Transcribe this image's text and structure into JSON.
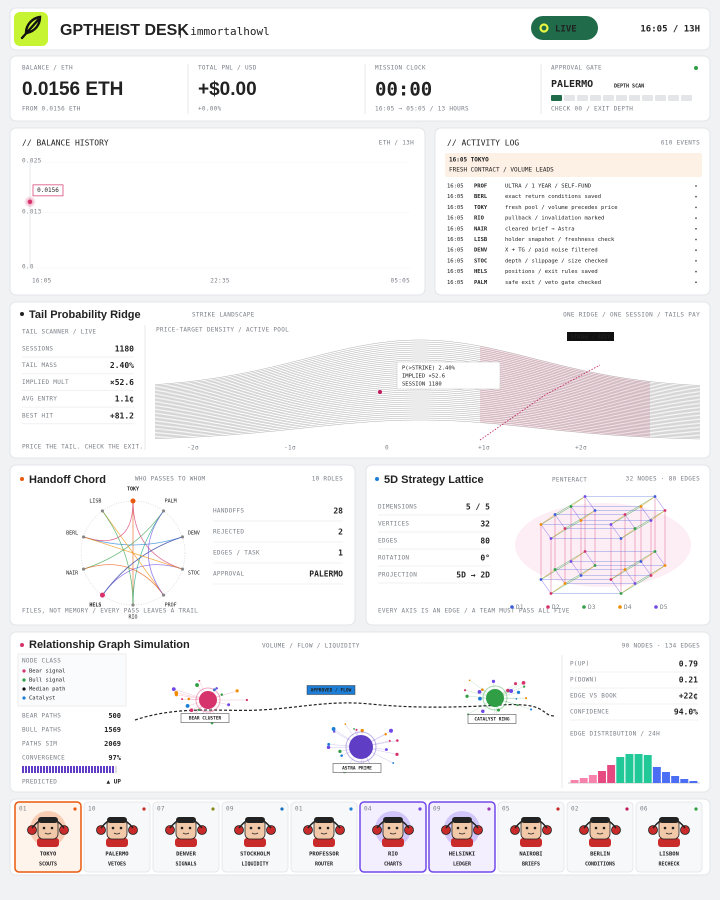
{
  "header": {
    "title": "GPTHEIST DESK",
    "user": "| immortalhowl",
    "status": "LIVE",
    "clock": "16:05 / 13H"
  },
  "stats": [
    {
      "label": "BALANCE / ETH",
      "value": "0.0156 ETH",
      "sub": "FROM 0.0156 ETH"
    },
    {
      "label": "TOTAL PNL / USD",
      "value": "+$0.00",
      "sub": "+0.00%"
    },
    {
      "label": "MISSION CLOCK",
      "value": "00:00",
      "sub": "16:05 → 05:05 / 13 HOURS"
    }
  ],
  "approval_gate": {
    "label": "APPROVAL GATE",
    "city": "PALERMO",
    "mode": "DEPTH SCAN",
    "sub": "CHECK 00 / EXIT DEPTH",
    "segments": [
      1,
      0,
      0,
      0,
      0,
      0,
      0,
      0,
      0,
      0,
      0
    ]
  },
  "balance_history": {
    "type": "line",
    "title": "// BALANCE HISTORY",
    "meta": "ETH / 13H",
    "x": [
      "16:05",
      "22:35",
      "05:05"
    ],
    "values": [
      0.0156,
      null,
      null
    ],
    "ylim": [
      0,
      0.025
    ],
    "yticks": [
      {
        "value": 0,
        "label": "0.0"
      },
      0.013,
      0.025
    ],
    "color": "#d6336c"
  },
  "activity_log": {
    "title": "// ACTIVITY LOG",
    "meta": "610 EVENTS",
    "highlight": {
      "head": "16:05 TOKYO",
      "body": "FRESH CONTRACT / VOLUME LEADS"
    },
    "rows": [
      {
        "time": "16:05",
        "code": "PROF",
        "text": "ULTRA / 1 YEAR / SELF-FUND",
        "color": "#1c7ed6"
      },
      {
        "time": "16:05",
        "code": "BERL",
        "text": "exact return conditions saved",
        "color": "#c2185b"
      },
      {
        "time": "16:05",
        "code": "TOKY",
        "text": "fresh pool / volume precedes price",
        "color": "#e8590c"
      },
      {
        "time": "16:05",
        "code": "RIO",
        "text": "pullback / invalidation marked",
        "color": "#7048e8"
      },
      {
        "time": "16:05",
        "code": "NAIR",
        "text": "cleared brief → Astra",
        "color": "#c92a2a"
      },
      {
        "time": "16:05",
        "code": "LISB",
        "text": "holder snapshot / freshness check",
        "color": "#2f9e44"
      },
      {
        "time": "16:05",
        "code": "DENV",
        "text": "X + TG / paid noise filtered",
        "color": "#8a8a1a"
      },
      {
        "time": "16:05",
        "code": "STOC",
        "text": "depth / slippage / size checked",
        "color": "#1971c2"
      },
      {
        "time": "16:05",
        "code": "HELS",
        "text": "positions / exit rules saved",
        "color": "#9c36b5"
      },
      {
        "time": "16:05",
        "code": "PALM",
        "text": "safe exit / veto gate checked",
        "color": "#c92a2a"
      }
    ]
  },
  "tail_ridge": {
    "title": "Tail Probability Ridge",
    "subtitle": "STRIKE LANDSCAPE",
    "meta": "ONE RIDGE / ONE SESSION / TAILS PAY",
    "scanner": "TAIL SCANNER / LIVE",
    "stats": [
      [
        "SESSIONS",
        "1180"
      ],
      [
        "TAIL MASS",
        "2.40%"
      ],
      [
        "IMPLIED MULT",
        "×52.6"
      ],
      [
        "AVG ENTRY",
        "1.1¢"
      ],
      [
        "BEST HIT",
        "+81.2"
      ]
    ],
    "footer": "PRICE THE TAIL. CHECK THE EXIT.",
    "plot_label": "PRICE-TARGET DENSITY / ACTIVE POOL",
    "marker": "STRIKE / EXIT",
    "tooltip": [
      "P(>STRIKE) 2.40%",
      "IMPLIED ×52.6",
      "SESSION 1180"
    ],
    "xticks": [
      "-2σ",
      "-1σ",
      "0",
      "+1σ",
      "+2σ"
    ]
  },
  "handoff_chord": {
    "title": "Handoff Chord",
    "subtitle": "WHO PASSES TO WHOM",
    "meta": "10 ROLES",
    "nodes": [
      "TOKY",
      "PALM",
      "DENV",
      "STOC",
      "PROF",
      "RIO",
      "HELS",
      "NAIR",
      "BERL",
      "LISB"
    ],
    "stats": [
      [
        "HANDOFFS",
        "28"
      ],
      [
        "REJECTED",
        "2"
      ],
      [
        "EDGES / TASK",
        "1"
      ],
      [
        "APPROVAL",
        "PALERMO"
      ]
    ],
    "footer": "FILES, NOT MEMORY / EVERY PASS LEAVES A TRAIL"
  },
  "lattice": {
    "title": "5D Strategy Lattice",
    "subtitle": "PENTERACT",
    "meta": "32 NODES · 80 EDGES",
    "stats": [
      [
        "DIMENSIONS",
        "5 / 5"
      ],
      [
        "VERTICES",
        "32"
      ],
      [
        "EDGES",
        "80"
      ],
      [
        "ROTATION",
        "0°"
      ],
      [
        "PROJECTION",
        "5D → 2D"
      ]
    ],
    "footer": "EVERY AXIS IS AN EDGE / A TEAM MUST PASS ALL FIVE",
    "legend": [
      "D1",
      "D2",
      "D3",
      "D4",
      "D5"
    ],
    "colors": [
      "#3b5bdb",
      "#d6336c",
      "#2f9e44",
      "#f08c00",
      "#7048e8"
    ]
  },
  "relationship_graph": {
    "title": "Relationship Graph Simulation",
    "subtitle": "VOLUME / FLOW / LIQUIDITY",
    "meta": "90 NODES · 134 EDGES",
    "node_class_title": "NODE CLASS",
    "node_classes": [
      "Bear signal",
      "Bull signal",
      "Median path",
      "Catalyst"
    ],
    "stats": [
      [
        "BEAR PATHS",
        "500"
      ],
      [
        "BULL PATHS",
        "1569"
      ],
      [
        "PATHS SIM",
        "2069"
      ],
      [
        "CONVERGENCE",
        "97%"
      ]
    ],
    "predicted": "PREDICTED",
    "direction": "▲ UP",
    "graph_labels": [
      "BEAR CLUSTER",
      "APPROVED / FLOW",
      "CATALYST RING",
      "ASTRA PRIME"
    ],
    "metrics": [
      [
        "P(UP)",
        "0.79"
      ],
      [
        "P(DOWN)",
        "0.21"
      ],
      [
        "EDGE VS BOOK",
        "+22¢"
      ],
      [
        "CONFIDENCE",
        "94.0%"
      ]
    ],
    "dist_title": "EDGE DISTRIBUTION / 24H",
    "distribution": [
      3,
      5,
      8,
      12,
      18,
      26,
      29,
      29,
      28,
      16,
      11,
      7,
      4,
      2
    ]
  },
  "agents": [
    {
      "num": "01",
      "name": "TOKYO",
      "role": "SCOUTS",
      "color": "#e8590c"
    },
    {
      "num": "10",
      "name": "PALERMO",
      "role": "VETOES",
      "color": "#c92a2a"
    },
    {
      "num": "07",
      "name": "DENVER",
      "role": "SIGNALS",
      "color": "#8a8a1a"
    },
    {
      "num": "09",
      "name": "STOCKHOLM",
      "role": "LIQUIDITY",
      "color": "#1971c2"
    },
    {
      "num": "01",
      "name": "PROFESSOR",
      "role": "ROUTER",
      "color": "#1c7ed6"
    },
    {
      "num": "04",
      "name": "RIO",
      "role": "CHARTS",
      "color": "#7048e8"
    },
    {
      "num": "09",
      "name": "HELSINKI",
      "role": "LEDGER",
      "color": "#9c36b5"
    },
    {
      "num": "05",
      "name": "NAIROBI",
      "role": "BRIEFS",
      "color": "#c92a2a"
    },
    {
      "num": "02",
      "name": "BERLIN",
      "role": "CONDITIONS",
      "color": "#c2185b"
    },
    {
      "num": "06",
      "name": "LISBON",
      "role": "RECHECK",
      "color": "#2f9e44"
    }
  ]
}
